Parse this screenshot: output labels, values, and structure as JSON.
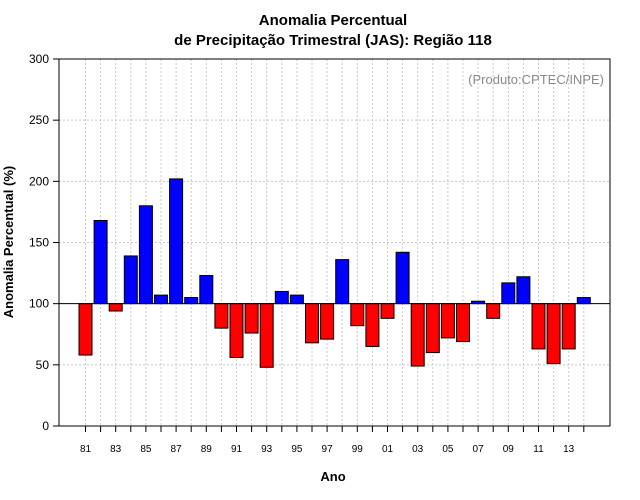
{
  "chart_data": {
    "type": "bar",
    "title_line1": "Anomalia Percentual",
    "title_line2": "de Precipitação Trimestral (JAS): Região 118",
    "xlabel": "Ano",
    "ylabel": "Anomalia Percentual (%)",
    "annotation": "(Produto:CPTEC/INPE)",
    "ylim": [
      0,
      300
    ],
    "yticks": [
      0,
      50,
      100,
      150,
      200,
      250,
      300
    ],
    "baseline": 100,
    "colors": {
      "above": "#0000ff",
      "below": "#ff0000"
    },
    "categories": [
      "81",
      "82",
      "83",
      "84",
      "85",
      "86",
      "87",
      "88",
      "89",
      "90",
      "91",
      "92",
      "93",
      "94",
      "95",
      "96",
      "97",
      "98",
      "99",
      "00",
      "01",
      "02",
      "03",
      "04",
      "05",
      "06",
      "07",
      "08",
      "09",
      "10",
      "11",
      "12",
      "13",
      "14"
    ],
    "values": [
      58,
      168,
      94,
      139,
      180,
      107,
      202,
      105,
      123,
      80,
      56,
      76,
      48,
      110,
      107,
      68,
      71,
      136,
      82,
      65,
      88,
      142,
      49,
      60,
      72,
      69,
      102,
      88,
      117,
      122,
      63,
      51,
      63,
      105
    ],
    "xtick_labels": [
      "81",
      "83",
      "85",
      "87",
      "89",
      "91",
      "93",
      "95",
      "97",
      "99",
      "01",
      "03",
      "05",
      "07",
      "09",
      "11",
      "13"
    ],
    "grid": true
  }
}
